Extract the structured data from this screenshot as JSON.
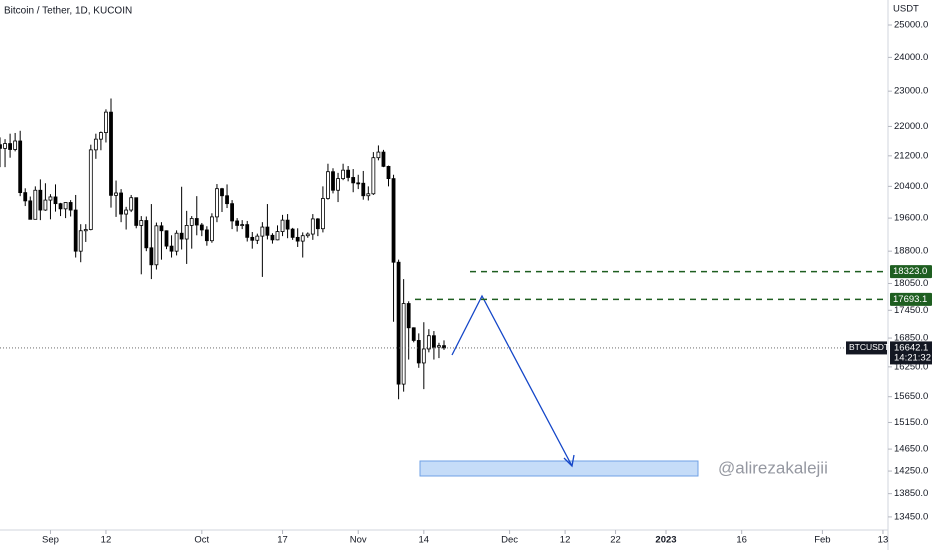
{
  "chart_data": {
    "type": "candlestick",
    "title": "Bitcoin / Tether, 1D, KUCOIN",
    "y_unit": "USDT",
    "symbol": "BTCUSDT",
    "countdown": "14:21:32",
    "watermark": "@alirezakalejii",
    "log_scale": true,
    "up_color": "#ffffff",
    "down_color": "#000000",
    "x": [
      "2022-08-22",
      "2022-08-23",
      "2022-08-24",
      "2022-08-25",
      "2022-08-26",
      "2022-08-27",
      "2022-08-28",
      "2022-08-29",
      "2022-08-30",
      "2022-08-31",
      "2022-09-01",
      "2022-09-02",
      "2022-09-03",
      "2022-09-04",
      "2022-09-05",
      "2022-09-06",
      "2022-09-07",
      "2022-09-08",
      "2022-09-09",
      "2022-09-10",
      "2022-09-11",
      "2022-09-12",
      "2022-09-13",
      "2022-09-14",
      "2022-09-15",
      "2022-09-16",
      "2022-09-17",
      "2022-09-18",
      "2022-09-19",
      "2022-09-20",
      "2022-09-21",
      "2022-09-22",
      "2022-09-23",
      "2022-09-24",
      "2022-09-25",
      "2022-09-26",
      "2022-09-27",
      "2022-09-28",
      "2022-09-29",
      "2022-09-30",
      "2022-10-01",
      "2022-10-02",
      "2022-10-03",
      "2022-10-04",
      "2022-10-05",
      "2022-10-06",
      "2022-10-07",
      "2022-10-08",
      "2022-10-09",
      "2022-10-10",
      "2022-10-11",
      "2022-10-12",
      "2022-10-13",
      "2022-10-14",
      "2022-10-15",
      "2022-10-16",
      "2022-10-17",
      "2022-10-18",
      "2022-10-19",
      "2022-10-20",
      "2022-10-21",
      "2022-10-22",
      "2022-10-23",
      "2022-10-24",
      "2022-10-25",
      "2022-10-26",
      "2022-10-27",
      "2022-10-28",
      "2022-10-29",
      "2022-10-30",
      "2022-10-31",
      "2022-11-01",
      "2022-11-02",
      "2022-11-03",
      "2022-11-04",
      "2022-11-05",
      "2022-11-06",
      "2022-11-07",
      "2022-11-08",
      "2022-11-09",
      "2022-11-10",
      "2022-11-11",
      "2022-11-12",
      "2022-11-13",
      "2022-11-14",
      "2022-11-15",
      "2022-11-16",
      "2022-11-17",
      "2022-11-18"
    ],
    "open": [
      21500,
      21400,
      21530,
      21370,
      21600,
      20240,
      20030,
      19570,
      20300,
      19800,
      20050,
      20130,
      19960,
      19830,
      19990,
      19800,
      18800,
      19290,
      19320,
      21360,
      21650,
      21830,
      22400,
      20170,
      20230,
      19700,
      19800,
      20110,
      19420,
      19540,
      18880,
      18480,
      19410,
      19290,
      18920,
      18800,
      19230,
      19090,
      19420,
      19590,
      19430,
      19310,
      19050,
      19630,
      20340,
      20160,
      19960,
      19530,
      19420,
      19440,
      19130,
      19060,
      19160,
      19380,
      19180,
      19070,
      19270,
      19550,
      19330,
      19130,
      19040,
      19170,
      19210,
      19580,
      19340,
      20090,
      20780,
      20300,
      20600,
      20820,
      20630,
      20490,
      20480,
      20160,
      20210,
      21150,
      21300,
      20920,
      20600,
      18540,
      15900,
      17600,
      17070,
      16800,
      16330,
      16620,
      16900,
      16660,
      16690
    ],
    "high": [
      21700,
      21650,
      21800,
      21820,
      21880,
      20350,
      20140,
      20400,
      20580,
      20480,
      20200,
      20450,
      19980,
      20000,
      20050,
      20180,
      19450,
      19450,
      21500,
      21800,
      21860,
      22480,
      22790,
      20550,
      20330,
      19880,
      20180,
      20110,
      19650,
      19640,
      19950,
      19490,
      19500,
      19300,
      19180,
      19300,
      20390,
      19780,
      19650,
      20150,
      19480,
      19400,
      19720,
      20460,
      20360,
      20450,
      20050,
      19600,
      19550,
      19530,
      19260,
      19220,
      19500,
      19950,
      19230,
      19420,
      19680,
      19700,
      19360,
      19350,
      19250,
      19250,
      19700,
      19600,
      20400,
      20990,
      20870,
      20750,
      20990,
      20930,
      20850,
      20700,
      20800,
      20400,
      21300,
      21480,
      21360,
      20940,
      20700,
      18600,
      18150,
      17650,
      17080,
      16950,
      17190,
      17040,
      17000,
      16750,
      16800
    ],
    "low": [
      20900,
      20900,
      21150,
      21320,
      20150,
      19900,
      19600,
      19570,
      19550,
      19780,
      19570,
      19760,
      19650,
      19600,
      19640,
      18650,
      18540,
      19020,
      19300,
      21120,
      21350,
      21560,
      19860,
      19630,
      19500,
      19320,
      19750,
      19350,
      18260,
      18800,
      18150,
      18370,
      18600,
      18850,
      18650,
      18700,
      18840,
      18500,
      18860,
      19180,
      19160,
      18930,
      19000,
      19500,
      19750,
      19850,
      19330,
      19270,
      19330,
      19030,
      18860,
      18970,
      18200,
      19080,
      18980,
      19060,
      19160,
      19110,
      19070,
      18900,
      18650,
      19120,
      19070,
      19160,
      19250,
      20060,
      20220,
      20000,
      20560,
      20530,
      20250,
      20330,
      20060,
      20040,
      20180,
      21080,
      20900,
      20400,
      17200,
      15600,
      15750,
      16400,
      16760,
      16230,
      15800,
      16550,
      16400,
      16430,
      16600
    ],
    "close": [
      21400,
      21530,
      21370,
      21600,
      20240,
      20030,
      19570,
      20300,
      19800,
      20050,
      20130,
      19960,
      19830,
      19990,
      19800,
      18800,
      19290,
      19320,
      21360,
      21650,
      21830,
      22400,
      20170,
      20230,
      19700,
      19800,
      20110,
      19420,
      19540,
      18880,
      18480,
      19410,
      19290,
      18920,
      18800,
      19230,
      19090,
      19420,
      19590,
      19430,
      19310,
      19050,
      19630,
      20340,
      20160,
      19960,
      19530,
      19420,
      19440,
      19130,
      19060,
      19160,
      19380,
      19180,
      19070,
      19270,
      19550,
      19330,
      19130,
      19040,
      19170,
      19210,
      19580,
      19340,
      20090,
      20780,
      20300,
      20600,
      20820,
      20630,
      20490,
      20480,
      20160,
      20210,
      21150,
      21300,
      20920,
      20600,
      18540,
      15900,
      17600,
      17070,
      16800,
      16330,
      16620,
      16900,
      16660,
      16690,
      16642.1
    ],
    "last_price": 16642.1,
    "levels": [
      {
        "value": 18323,
        "label": "18323.0",
        "color": "#1e5e20"
      },
      {
        "value": 17693.1,
        "label": "17693.1",
        "color": "#1e5e20"
      }
    ],
    "xlim": [
      "2022-08-22",
      "2023-02-14"
    ],
    "xticks": [
      {
        "value": "2022-09-01",
        "label": "Sep"
      },
      {
        "value": "2022-09-12",
        "label": "12"
      },
      {
        "value": "2022-10-01",
        "label": "Oct"
      },
      {
        "value": "2022-10-17",
        "label": "17"
      },
      {
        "value": "2022-11-01",
        "label": "Nov"
      },
      {
        "value": "2022-11-14",
        "label": "14"
      },
      {
        "value": "2022-12-01",
        "label": "Dec"
      },
      {
        "value": "2022-12-12",
        "label": "12"
      },
      {
        "value": "2022-12-22",
        "label": "22"
      },
      {
        "value": "2023-01-01",
        "label": "2023"
      },
      {
        "value": "2023-01-16",
        "label": "16"
      },
      {
        "value": "2023-02-01",
        "label": "Feb"
      },
      {
        "value": "2023-02-13",
        "label": "13"
      }
    ],
    "ylim": [
      13230,
      25800
    ],
    "yticks": [
      {
        "value": 25000,
        "label": "25000.0"
      },
      {
        "value": 24000,
        "label": "24000.0"
      },
      {
        "value": 23000,
        "label": "23000.0"
      },
      {
        "value": 22000,
        "label": "22000.0"
      },
      {
        "value": 21200,
        "label": "21200.0"
      },
      {
        "value": 20400,
        "label": "20400.0"
      },
      {
        "value": 19600,
        "label": "19600.0"
      },
      {
        "value": 18800,
        "label": "18800.0"
      },
      {
        "value": 18050,
        "label": "18050.0"
      },
      {
        "value": 17450,
        "label": "17450.0"
      },
      {
        "value": 16850,
        "label": "16850.0"
      },
      {
        "value": 16250,
        "label": "16250.0"
      },
      {
        "value": 15650,
        "label": "15650.0"
      },
      {
        "value": 15150,
        "label": "15150.0"
      },
      {
        "value": 14650,
        "label": "14650.0"
      },
      {
        "value": 14250,
        "label": "14250.0"
      },
      {
        "value": 13850,
        "label": "13850.0"
      },
      {
        "value": 13450,
        "label": "13450.0"
      }
    ]
  }
}
